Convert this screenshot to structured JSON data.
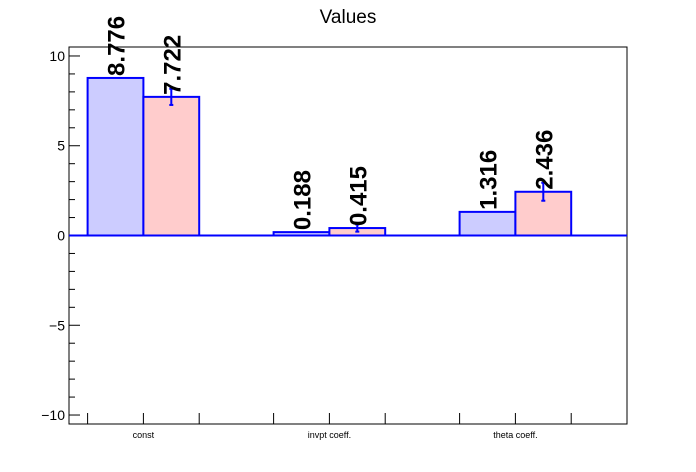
{
  "chart_data": {
    "type": "bar",
    "title": "Values",
    "xlabel": "",
    "ylabel": "",
    "categories": [
      "const",
      "invpt coeff.",
      "theta coeff."
    ],
    "series": [
      {
        "values": [
          8.776,
          0.188,
          1.316
        ],
        "errors": [
          0,
          0,
          0
        ],
        "fill": "#ccccff",
        "edge": "#0000ff"
      },
      {
        "values": [
          7.722,
          0.415,
          2.436
        ],
        "errors": [
          0.45,
          0.2,
          0.5
        ],
        "fill": "#ffcccc",
        "edge": "#0000ff"
      }
    ],
    "data_labels": [
      [
        "8.776",
        "0.188",
        "1.316"
      ],
      [
        "7.722",
        "0.415",
        "2.436"
      ]
    ],
    "ylim": [
      -10.5,
      10.5
    ],
    "yticks": [
      -10,
      -5,
      0,
      5,
      10
    ],
    "ytick_labels": [
      "−10",
      "−5",
      "0",
      "5",
      "10"
    ],
    "grid": false,
    "legend": "none",
    "zero_line_color": "#0000ff"
  }
}
